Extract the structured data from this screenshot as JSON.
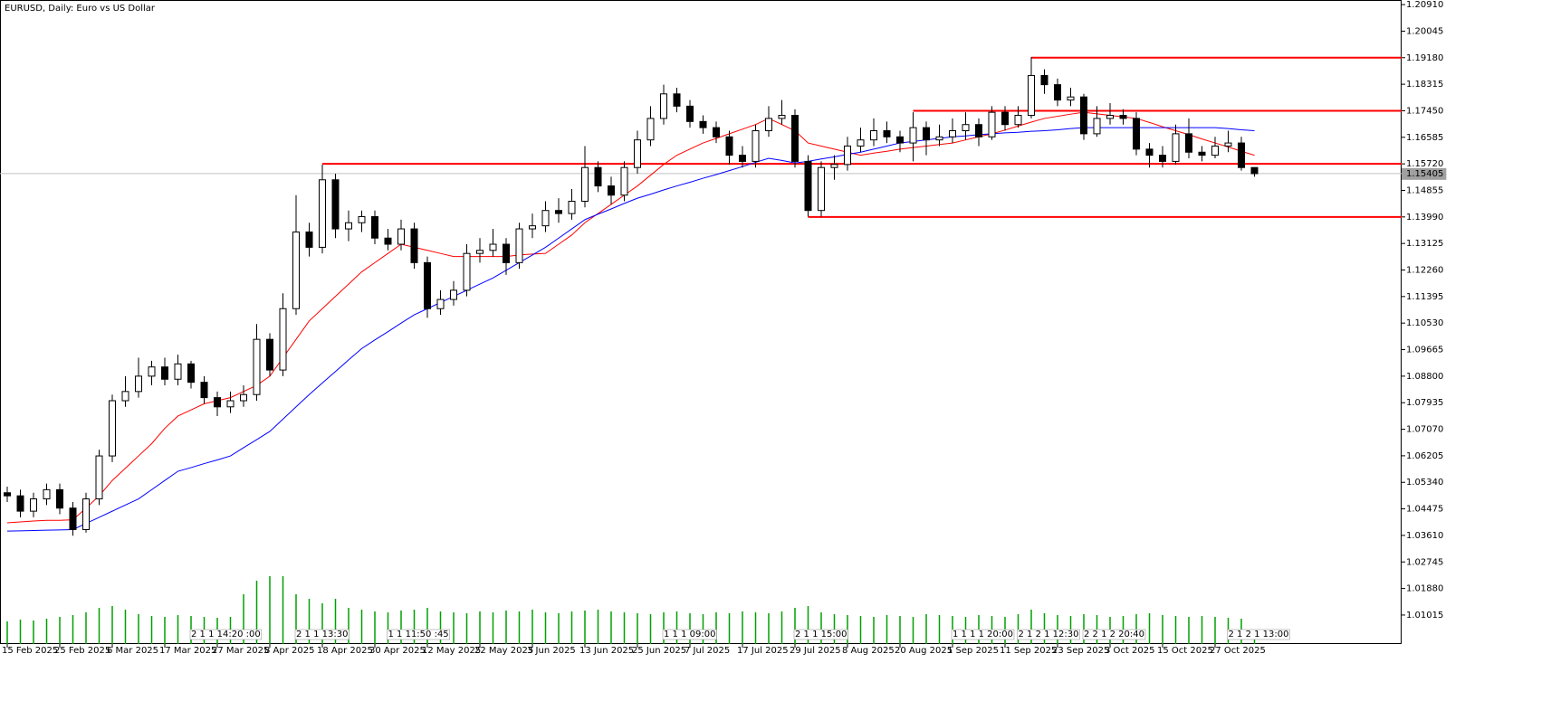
{
  "chart_data": {
    "type": "candlestick",
    "title": "EURUSD, Daily:  Euro vs US Dollar",
    "categories": [
      "15 Feb 2025",
      null,
      null,
      null,
      "25 Feb 2025",
      null,
      null,
      null,
      "6 Mar 2025",
      null,
      null,
      null,
      "17 Mar 2025",
      null,
      null,
      null,
      "27 Mar 2025",
      null,
      null,
      null,
      "8 Apr 2025",
      null,
      null,
      null,
      "18 Apr 2025",
      null,
      null,
      null,
      "30 Apr 2025",
      null,
      null,
      null,
      "12 May 2025",
      null,
      null,
      null,
      "22 May 2025",
      null,
      null,
      null,
      "3 Jun 2025",
      null,
      null,
      null,
      "13 Jun 2025",
      null,
      null,
      null,
      "25 Jun 2025",
      null,
      null,
      null,
      "7 Jul 2025",
      null,
      null,
      null,
      "17 Jul 2025",
      null,
      null,
      null,
      "29 Jul 2025",
      null,
      null,
      null,
      "8 Aug 2025",
      null,
      null,
      null,
      "20 Aug 2025",
      null,
      null,
      null,
      "1 Sep 2025",
      null,
      null,
      null,
      "11 Sep 2025",
      null,
      null,
      null,
      "23 Sep 2025",
      null,
      null,
      null,
      "3 Oct 2025",
      null,
      null,
      null,
      "15 Oct 2025",
      null,
      null,
      null,
      "27 Oct 2025",
      null,
      null,
      null
    ],
    "open": [
      1.05,
      1.049,
      1.044,
      1.048,
      1.051,
      1.045,
      1.038,
      1.048,
      1.062,
      1.08,
      1.083,
      1.088,
      1.091,
      1.087,
      1.092,
      1.086,
      1.081,
      1.078,
      1.08,
      1.082,
      1.1,
      1.09,
      1.11,
      1.135,
      1.13,
      1.152,
      1.136,
      1.138,
      1.14,
      1.133,
      1.131,
      1.136,
      1.125,
      1.11,
      1.113,
      1.116,
      1.128,
      1.129,
      1.131,
      1.125,
      1.136,
      1.137,
      1.142,
      1.141,
      1.145,
      1.156,
      1.15,
      1.147,
      1.156,
      1.165,
      1.172,
      1.18,
      1.176,
      1.171,
      1.169,
      1.166,
      1.16,
      1.158,
      1.168,
      1.172,
      1.173,
      1.158,
      1.142,
      1.156,
      1.157,
      1.163,
      1.165,
      1.168,
      1.166,
      1.164,
      1.169,
      1.165,
      1.166,
      1.168,
      1.17,
      1.166,
      1.174,
      1.17,
      1.173,
      1.186,
      1.183,
      1.178,
      1.179,
      1.167,
      1.172,
      1.173,
      1.172,
      1.162,
      1.16,
      1.158,
      1.167,
      1.161,
      1.16,
      1.163,
      1.164,
      1.156
    ],
    "high": [
      1.052,
      1.051,
      1.05,
      1.053,
      1.053,
      1.047,
      1.05,
      1.064,
      1.082,
      1.088,
      1.094,
      1.093,
      1.094,
      1.095,
      1.093,
      1.088,
      1.083,
      1.083,
      1.085,
      1.105,
      1.102,
      1.115,
      1.147,
      1.138,
      1.157,
      1.154,
      1.142,
      1.142,
      1.142,
      1.136,
      1.139,
      1.138,
      1.127,
      1.116,
      1.119,
      1.131,
      1.133,
      1.136,
      1.133,
      1.138,
      1.141,
      1.145,
      1.146,
      1.149,
      1.163,
      1.158,
      1.153,
      1.158,
      1.168,
      1.176,
      1.183,
      1.182,
      1.178,
      1.173,
      1.171,
      1.168,
      1.163,
      1.17,
      1.176,
      1.178,
      1.175,
      1.16,
      1.158,
      1.16,
      1.166,
      1.169,
      1.172,
      1.171,
      1.168,
      1.174,
      1.171,
      1.17,
      1.172,
      1.174,
      1.172,
      1.176,
      1.176,
      1.176,
      1.192,
      1.188,
      1.185,
      1.182,
      1.18,
      1.176,
      1.177,
      1.175,
      1.174,
      1.164,
      1.163,
      1.17,
      1.172,
      1.163,
      1.166,
      1.168,
      1.166,
      1.156
    ],
    "low": [
      1.047,
      1.042,
      1.042,
      1.046,
      1.043,
      1.036,
      1.037,
      1.046,
      1.06,
      1.078,
      1.081,
      1.085,
      1.085,
      1.085,
      1.084,
      1.079,
      1.075,
      1.076,
      1.078,
      1.08,
      1.088,
      1.088,
      1.108,
      1.127,
      1.128,
      1.133,
      1.132,
      1.135,
      1.131,
      1.129,
      1.129,
      1.123,
      1.107,
      1.108,
      1.111,
      1.114,
      1.125,
      1.127,
      1.121,
      1.123,
      1.133,
      1.135,
      1.138,
      1.139,
      1.143,
      1.148,
      1.144,
      1.145,
      1.154,
      1.163,
      1.17,
      1.174,
      1.169,
      1.167,
      1.164,
      1.157,
      1.156,
      1.156,
      1.166,
      1.17,
      1.156,
      1.14,
      1.14,
      1.152,
      1.155,
      1.161,
      1.163,
      1.164,
      1.161,
      1.158,
      1.16,
      1.163,
      1.164,
      1.165,
      1.163,
      1.165,
      1.168,
      1.169,
      1.172,
      1.18,
      1.176,
      1.176,
      1.165,
      1.166,
      1.17,
      1.17,
      1.16,
      1.156,
      1.156,
      1.157,
      1.159,
      1.158,
      1.159,
      1.161,
      1.155,
      1.153
    ],
    "close": [
      1.049,
      1.044,
      1.048,
      1.051,
      1.045,
      1.038,
      1.048,
      1.062,
      1.08,
      1.083,
      1.088,
      1.091,
      1.087,
      1.092,
      1.086,
      1.081,
      1.078,
      1.08,
      1.082,
      1.1,
      1.09,
      1.11,
      1.135,
      1.13,
      1.152,
      1.136,
      1.138,
      1.14,
      1.133,
      1.131,
      1.136,
      1.125,
      1.11,
      1.113,
      1.116,
      1.128,
      1.129,
      1.131,
      1.125,
      1.136,
      1.137,
      1.142,
      1.141,
      1.145,
      1.156,
      1.15,
      1.147,
      1.156,
      1.165,
      1.172,
      1.18,
      1.176,
      1.171,
      1.169,
      1.166,
      1.16,
      1.158,
      1.168,
      1.172,
      1.173,
      1.158,
      1.142,
      1.156,
      1.157,
      1.163,
      1.165,
      1.168,
      1.166,
      1.164,
      1.169,
      1.165,
      1.166,
      1.168,
      1.17,
      1.166,
      1.174,
      1.17,
      1.173,
      1.186,
      1.183,
      1.178,
      1.179,
      1.167,
      1.172,
      1.173,
      1.172,
      1.162,
      1.16,
      1.158,
      1.167,
      1.161,
      1.16,
      1.163,
      1.164,
      1.156,
      1.154
    ],
    "ma": [
      {
        "color": "#ff0000",
        "values": [
          1.0402,
          1.0405,
          1.0408,
          1.041,
          1.041,
          1.0412,
          1.045,
          1.049,
          1.054,
          1.058,
          1.062,
          1.066,
          1.071,
          1.075,
          1.077,
          1.079,
          1.08,
          1.081,
          1.083,
          1.085,
          1.088,
          1.094,
          1.1,
          1.106,
          1.11,
          1.114,
          1.118,
          1.122,
          1.125,
          1.128,
          1.131,
          1.13,
          1.129,
          1.128,
          1.127,
          1.127,
          1.127,
          1.127,
          1.127,
          1.1275,
          1.1278,
          1.128,
          1.131,
          1.134,
          1.138,
          1.141,
          1.144,
          1.147,
          1.15,
          1.1535,
          1.157,
          1.16,
          1.162,
          1.164,
          1.1655,
          1.167,
          1.1685,
          1.17,
          1.172,
          1.17,
          1.168,
          1.164,
          1.163,
          1.162,
          1.161,
          1.16,
          1.1607,
          1.1613,
          1.162,
          1.1625,
          1.163,
          1.1635,
          1.164,
          1.165,
          1.166,
          1.167,
          1.1682,
          1.1695,
          1.1708,
          1.172,
          1.1727,
          1.1734,
          1.174,
          1.1735,
          1.173,
          1.1725,
          1.172,
          1.1707,
          1.1693,
          1.168,
          1.1667,
          1.1653,
          1.164,
          1.1627,
          1.1613,
          1.16
        ]
      },
      {
        "color": "#0000ff",
        "values": [
          1.0375,
          1.0376,
          1.0377,
          1.0378,
          1.0379,
          1.038,
          1.04,
          1.042,
          1.044,
          1.046,
          1.048,
          1.051,
          1.054,
          1.057,
          1.0582,
          1.0595,
          1.0607,
          1.062,
          1.0647,
          1.0673,
          1.07,
          1.074,
          1.078,
          1.082,
          1.0858,
          1.0895,
          1.0933,
          1.097,
          1.0998,
          1.1025,
          1.1053,
          1.108,
          1.11,
          1.112,
          1.114,
          1.116,
          1.118,
          1.12,
          1.1225,
          1.125,
          1.1275,
          1.13,
          1.133,
          1.136,
          1.139,
          1.1408,
          1.1425,
          1.1443,
          1.146,
          1.1473,
          1.1487,
          1.15,
          1.1512,
          1.1525,
          1.1537,
          1.155,
          1.1563,
          1.1577,
          1.159,
          1.1583,
          1.1575,
          1.158,
          1.1588,
          1.1595,
          1.1603,
          1.161,
          1.162,
          1.163,
          1.164,
          1.1645,
          1.165,
          1.1655,
          1.166,
          1.1663,
          1.1667,
          1.167,
          1.1673,
          1.1675,
          1.1678,
          1.168,
          1.1683,
          1.1687,
          1.169,
          1.169,
          1.169,
          1.169,
          1.169,
          1.169,
          1.169,
          1.169,
          1.169,
          1.169,
          1.169,
          1.1687,
          1.1683,
          1.168
        ]
      }
    ],
    "volume": [
      25,
      27,
      26,
      28,
      30,
      32,
      35,
      40,
      42,
      38,
      33,
      31,
      30,
      32,
      31,
      30,
      29,
      30,
      55,
      70,
      75,
      75,
      55,
      50,
      45,
      50,
      40,
      38,
      36,
      35,
      37,
      38,
      40,
      36,
      35,
      34,
      36,
      35,
      37,
      36,
      38,
      35,
      34,
      36,
      37,
      38,
      36,
      35,
      34,
      33,
      35,
      36,
      34,
      33,
      35,
      34,
      36,
      35,
      34,
      36,
      40,
      42,
      35,
      33,
      32,
      31,
      30,
      32,
      31,
      30,
      33,
      32,
      31,
      30,
      32,
      31,
      30,
      33,
      38,
      34,
      32,
      31,
      33,
      32,
      30,
      31,
      33,
      34,
      32,
      31,
      30,
      31,
      30,
      29,
      28,
      12
    ],
    "volume_color": "#00a000",
    "volume_lim": [
      0,
      100
    ],
    "ylim": [
      1.0007,
      1.2106
    ],
    "yticks": [
      {
        "value": 1.2091,
        "label": "1.20910"
      },
      1.20045,
      {
        "value": 1.1918,
        "label": "1.19180"
      },
      1.18315,
      {
        "value": 1.1745,
        "label": "1.17450"
      },
      1.16585,
      {
        "value": 1.1572,
        "label": "1.15720"
      },
      1.14855,
      {
        "value": 1.1399,
        "label": "1.13990"
      },
      1.13125,
      {
        "value": 1.1226,
        "label": "1.12260"
      },
      1.11395,
      {
        "value": 1.1053,
        "label": "1.10530"
      },
      1.09665,
      {
        "value": 1.088,
        "label": "1.08800"
      },
      1.07935,
      {
        "value": 1.0707,
        "label": "1.07070"
      },
      1.06205,
      {
        "value": 1.0534,
        "label": "1.05340"
      },
      1.04475,
      {
        "value": 1.0361,
        "label": "1.03610"
      },
      1.02745,
      {
        "value": 1.0188,
        "label": "1.01880"
      },
      1.01015
    ],
    "levels": [
      {
        "value": 1.1572,
        "from": 24
      },
      {
        "value": 1.1745,
        "from": 69
      },
      {
        "value": 1.1918,
        "from": 78
      },
      {
        "value": 1.1399,
        "from": 61
      }
    ],
    "level_color": "#ff0000",
    "current_price": 1.15405,
    "events": [
      {
        "at": 14,
        "label": "2 1 1 14:20 :00"
      },
      {
        "at": 22,
        "label": "2 1 1 13:30"
      },
      {
        "at": 29,
        "label": "1 1 11:50 :45"
      },
      {
        "at": 50,
        "label": "1 1 1 09:00"
      },
      {
        "at": 60,
        "label": "2 1 1 15:00"
      },
      {
        "at": 72,
        "label": "1 1 1 1 20:00"
      },
      {
        "at": 77,
        "label": "2 1 2 1 12:30"
      },
      {
        "at": 82,
        "label": "2 2 1 2 20:40"
      },
      {
        "at": 93,
        "label": "2 1 2 1 13:00"
      }
    ]
  }
}
